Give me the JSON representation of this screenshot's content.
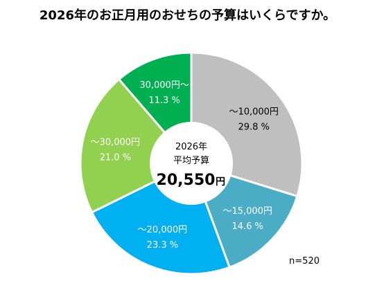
{
  "chart_data": {
    "type": "pie",
    "title": "2026年のお正月用のおせちの予算はいくらですか。",
    "categories": [
      "〜10,000円",
      "〜15,000円",
      "〜20,000円",
      "〜30,000円",
      "30,000円〜"
    ],
    "values": [
      29.8,
      14.6,
      23.3,
      21.0,
      11.3
    ],
    "value_labels": [
      "29.8 %",
      "14.6 %",
      "23.3 %",
      "21.0 %",
      "11.3 %"
    ],
    "colors": [
      "#bfbfbf",
      "#4bacc6",
      "#00b0f0",
      "#92d050",
      "#00b050"
    ],
    "label_colors": [
      "#000000",
      "#ffffff",
      "#ffffff",
      "#ffffff",
      "#ffffff"
    ],
    "center": {
      "line1": "2026年",
      "line2": "平均予算",
      "value": "20,550",
      "unit": "円"
    },
    "sample_size": "n=520"
  }
}
